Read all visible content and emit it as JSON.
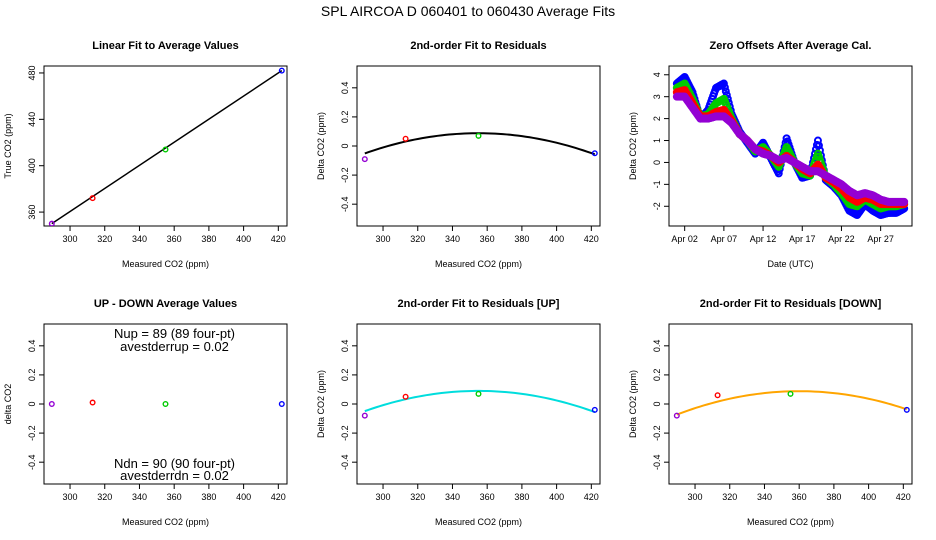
{
  "figure_title": "SPL    AIRCOA D    060401 to 060430    Average Fits",
  "chart_data": [
    {
      "type": "scatter",
      "title": "Linear Fit to Average Values",
      "xlabel": "Measured CO2 (ppm)",
      "ylabel": "True CO2 (ppm)",
      "xlim": [
        285,
        425
      ],
      "ylim": [
        348,
        486
      ],
      "xticks": [
        300,
        320,
        340,
        360,
        380,
        400,
        420
      ],
      "yticks": [
        360,
        400,
        440,
        480
      ],
      "series": [
        {
          "color": "#9400d3",
          "x": [
            289.5
          ],
          "y": [
            350.0
          ]
        },
        {
          "color": "#ff0000",
          "x": [
            313.0
          ],
          "y": [
            372.0
          ]
        },
        {
          "color": "#00cc00",
          "x": [
            355.0
          ],
          "y": [
            414.0
          ]
        },
        {
          "color": "#0000ff",
          "x": [
            422.0
          ],
          "y": [
            482.0
          ]
        }
      ],
      "lines": [
        {
          "color": "#000000",
          "x": [
            289.5,
            422.0
          ],
          "y": [
            350.0,
            482.0
          ]
        }
      ]
    },
    {
      "type": "scatter",
      "title": "2nd-order Fit to Residuals",
      "xlabel": "Measured CO2 (ppm)",
      "ylabel": "Delta CO2 (ppm)",
      "xlim": [
        285,
        425
      ],
      "ylim": [
        -0.55,
        0.55
      ],
      "xticks": [
        300,
        320,
        340,
        360,
        380,
        400,
        420
      ],
      "yticks": [
        -0.4,
        -0.2,
        0.0,
        0.2,
        0.4
      ],
      "series": [
        {
          "color": "#9400d3",
          "x": [
            289.5
          ],
          "y": [
            -0.09
          ]
        },
        {
          "color": "#ff0000",
          "x": [
            313.0
          ],
          "y": [
            0.05
          ]
        },
        {
          "color": "#00cc00",
          "x": [
            355.0
          ],
          "y": [
            0.07
          ]
        },
        {
          "color": "#0000ff",
          "x": [
            422.0
          ],
          "y": [
            -0.05
          ]
        }
      ],
      "fit_curve": {
        "color": "#000000",
        "vertex_x": 355,
        "vertex_y": 0.088,
        "coef_a": -3.24e-05,
        "x_from": 289.5,
        "x_to": 422.0
      }
    },
    {
      "type": "scatter",
      "title": "Zero Offsets After Average Cal.",
      "xlabel": "Date (UTC)",
      "ylabel": "Delta CO2 (ppm)",
      "xlim": [
        "2006-03-31",
        "2006-05-01"
      ],
      "ylim": [
        -2.9,
        4.4
      ],
      "xticks": [
        "Apr 02",
        "Apr 07",
        "Apr 12",
        "Apr 17",
        "Apr 22",
        "Apr 27"
      ],
      "xtick_dates": [
        "2006-04-02",
        "2006-04-07",
        "2006-04-12",
        "2006-04-17",
        "2006-04-22",
        "2006-04-27"
      ],
      "yticks": [
        -2,
        -1,
        0,
        1,
        2,
        3,
        4
      ],
      "series": [
        {
          "color": "#0000ff",
          "dates": [
            "2006-04-01",
            "2006-04-02",
            "2006-04-03",
            "2006-04-04",
            "2006-04-05",
            "2006-04-06",
            "2006-04-07",
            "2006-04-08",
            "2006-04-09",
            "2006-04-10",
            "2006-04-11",
            "2006-04-12",
            "2006-04-13",
            "2006-04-14",
            "2006-04-15",
            "2006-04-16",
            "2006-04-17",
            "2006-04-18",
            "2006-04-19",
            "2006-04-20",
            "2006-04-21",
            "2006-04-22",
            "2006-04-23",
            "2006-04-24",
            "2006-04-25",
            "2006-04-26",
            "2006-04-27",
            "2006-04-28",
            "2006-04-29",
            "2006-04-30"
          ],
          "y": [
            3.6,
            3.9,
            3.2,
            2.0,
            2.4,
            3.4,
            3.6,
            2.2,
            1.4,
            0.9,
            0.4,
            0.9,
            0.2,
            -0.5,
            1.1,
            0.0,
            -0.7,
            -0.6,
            1.0,
            -0.8,
            -1.1,
            -1.5,
            -2.2,
            -2.4,
            -1.9,
            -2.2,
            -2.4,
            -2.3,
            -2.3,
            -2.1
          ]
        },
        {
          "color": "#00cc00",
          "dates": [
            "2006-04-01",
            "2006-04-02",
            "2006-04-03",
            "2006-04-04",
            "2006-04-05",
            "2006-04-06",
            "2006-04-07",
            "2006-04-08",
            "2006-04-09",
            "2006-04-10",
            "2006-04-11",
            "2006-04-12",
            "2006-04-13",
            "2006-04-14",
            "2006-04-15",
            "2006-04-16",
            "2006-04-17",
            "2006-04-18",
            "2006-04-19",
            "2006-04-20",
            "2006-04-21",
            "2006-04-22",
            "2006-04-23",
            "2006-04-24",
            "2006-04-25",
            "2006-04-26",
            "2006-04-27",
            "2006-04-28",
            "2006-04-29",
            "2006-04-30"
          ],
          "y": [
            3.4,
            3.6,
            2.9,
            2.1,
            2.2,
            2.7,
            2.9,
            2.0,
            1.3,
            1.0,
            0.5,
            0.7,
            0.3,
            -0.2,
            0.7,
            0.0,
            -0.5,
            -0.6,
            0.4,
            -0.7,
            -1.0,
            -1.4,
            -1.9,
            -2.0,
            -1.7,
            -1.9,
            -2.1,
            -2.0,
            -2.0,
            -1.9
          ]
        },
        {
          "color": "#ff0000",
          "dates": [
            "2006-04-01",
            "2006-04-02",
            "2006-04-03",
            "2006-04-04",
            "2006-04-05",
            "2006-04-06",
            "2006-04-07",
            "2006-04-08",
            "2006-04-09",
            "2006-04-10",
            "2006-04-11",
            "2006-04-12",
            "2006-04-13",
            "2006-04-14",
            "2006-04-15",
            "2006-04-16",
            "2006-04-17",
            "2006-04-18",
            "2006-04-19",
            "2006-04-20",
            "2006-04-21",
            "2006-04-22",
            "2006-04-23",
            "2006-04-24",
            "2006-04-25",
            "2006-04-26",
            "2006-04-27",
            "2006-04-28",
            "2006-04-29",
            "2006-04-30"
          ],
          "y": [
            3.2,
            3.3,
            2.7,
            2.1,
            2.1,
            2.3,
            2.4,
            1.9,
            1.3,
            1.0,
            0.6,
            0.5,
            0.3,
            0.0,
            0.3,
            0.0,
            -0.3,
            -0.5,
            -0.1,
            -0.7,
            -0.9,
            -1.2,
            -1.6,
            -1.8,
            -1.6,
            -1.7,
            -1.9,
            -1.9,
            -1.9,
            -1.9
          ]
        },
        {
          "color": "#9400d3",
          "dates": [
            "2006-04-01",
            "2006-04-02",
            "2006-04-03",
            "2006-04-04",
            "2006-04-05",
            "2006-04-06",
            "2006-04-07",
            "2006-04-08",
            "2006-04-09",
            "2006-04-10",
            "2006-04-11",
            "2006-04-12",
            "2006-04-13",
            "2006-04-14",
            "2006-04-15",
            "2006-04-16",
            "2006-04-17",
            "2006-04-18",
            "2006-04-19",
            "2006-04-20",
            "2006-04-21",
            "2006-04-22",
            "2006-04-23",
            "2006-04-24",
            "2006-04-25",
            "2006-04-26",
            "2006-04-27",
            "2006-04-28",
            "2006-04-29",
            "2006-04-30"
          ],
          "y": [
            3.0,
            3.0,
            2.5,
            2.0,
            2.0,
            2.1,
            2.1,
            1.8,
            1.3,
            1.0,
            0.6,
            0.4,
            0.3,
            0.1,
            0.2,
            0.0,
            -0.2,
            -0.4,
            -0.4,
            -0.6,
            -0.8,
            -1.0,
            -1.3,
            -1.5,
            -1.4,
            -1.5,
            -1.7,
            -1.8,
            -1.8,
            -1.8
          ]
        }
      ]
    },
    {
      "type": "scatter",
      "title": "UP - DOWN Average Values",
      "xlabel": "Measured CO2 (ppm)",
      "ylabel": "delta CO2",
      "xlim": [
        285,
        425
      ],
      "ylim": [
        -0.55,
        0.55
      ],
      "xticks": [
        300,
        320,
        340,
        360,
        380,
        400,
        420
      ],
      "yticks": [
        -0.4,
        -0.2,
        0.0,
        0.2,
        0.4
      ],
      "series": [
        {
          "color": "#9400d3",
          "x": [
            289.5
          ],
          "y": [
            0.0
          ]
        },
        {
          "color": "#ff0000",
          "x": [
            313.0
          ],
          "y": [
            0.01
          ]
        },
        {
          "color": "#00cc00",
          "x": [
            355.0
          ],
          "y": [
            0.0
          ]
        },
        {
          "color": "#0000ff",
          "x": [
            422.0
          ],
          "y": [
            0.0
          ]
        }
      ],
      "annotations": {
        "nup": "Nup = 89 (89 four-pt)",
        "avestderrup": "avestderrup =  0.02",
        "ndn": "Ndn = 90 (90 four-pt)",
        "avestderrdn": "avestderrdn =  0.02"
      }
    },
    {
      "type": "scatter",
      "title": "2nd-order Fit to Residuals [UP]",
      "xlabel": "Measured CO2 (ppm)",
      "ylabel": "Delta CO2 (ppm)",
      "xlim": [
        285,
        425
      ],
      "ylim": [
        -0.55,
        0.55
      ],
      "xticks": [
        300,
        320,
        340,
        360,
        380,
        400,
        420
      ],
      "yticks": [
        -0.4,
        -0.2,
        0.0,
        0.2,
        0.4
      ],
      "series": [
        {
          "color": "#9400d3",
          "x": [
            289.5
          ],
          "y": [
            -0.08
          ]
        },
        {
          "color": "#ff0000",
          "x": [
            313.0
          ],
          "y": [
            0.05
          ]
        },
        {
          "color": "#00cc00",
          "x": [
            355.0
          ],
          "y": [
            0.07
          ]
        },
        {
          "color": "#0000ff",
          "x": [
            422.0
          ],
          "y": [
            -0.04
          ]
        }
      ],
      "fit_curve": {
        "color": "#00dddd",
        "vertex_x": 355,
        "vertex_y": 0.09,
        "coef_a": -3.24e-05,
        "x_from": 289.5,
        "x_to": 422.0
      }
    },
    {
      "type": "scatter",
      "title": "2nd-order Fit to Residuals [DOWN]",
      "xlabel": "Measured CO2 (ppm)",
      "ylabel": "Delta CO2 (ppm)",
      "xlim": [
        285,
        425
      ],
      "ylim": [
        -0.55,
        0.55
      ],
      "xticks": [
        300,
        320,
        340,
        360,
        380,
        400,
        420
      ],
      "yticks": [
        -0.4,
        -0.2,
        0.0,
        0.2,
        0.4
      ],
      "series": [
        {
          "color": "#9400d3",
          "x": [
            289.5
          ],
          "y": [
            -0.08
          ]
        },
        {
          "color": "#ff0000",
          "x": [
            313.0
          ],
          "y": [
            0.06
          ]
        },
        {
          "color": "#00cc00",
          "x": [
            355.0
          ],
          "y": [
            0.07
          ]
        },
        {
          "color": "#0000ff",
          "x": [
            422.0
          ],
          "y": [
            -0.04
          ]
        }
      ],
      "fit_curve": {
        "color": "#ffa500",
        "vertex_x": 360,
        "vertex_y": 0.088,
        "coef_a": -3.24e-05,
        "x_from": 289.5,
        "x_to": 422.0
      }
    }
  ]
}
